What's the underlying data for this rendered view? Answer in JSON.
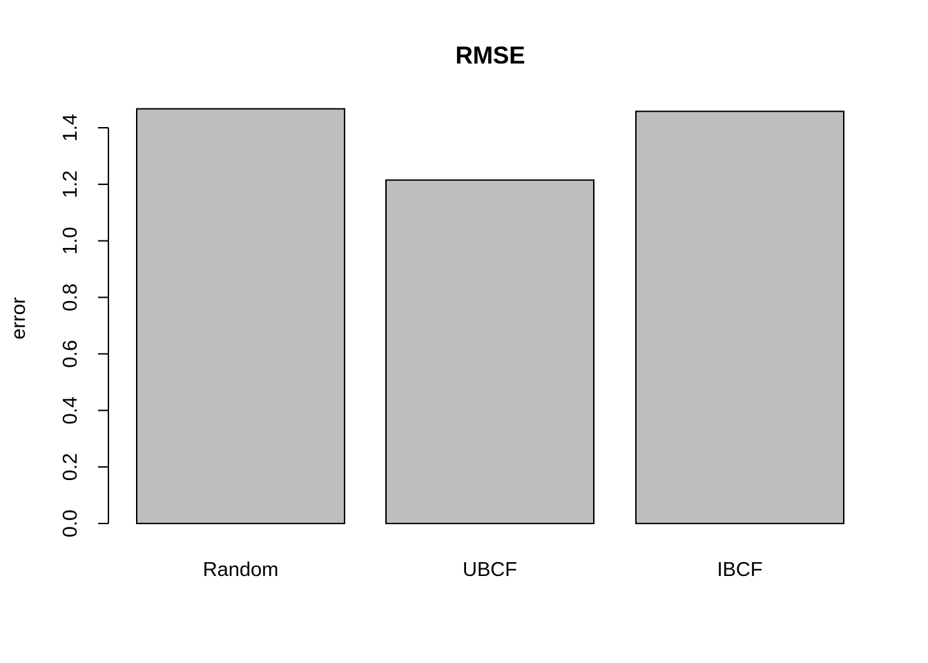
{
  "chart_data": {
    "type": "bar",
    "title": "RMSE",
    "xlabel": "",
    "ylabel": "error",
    "categories": [
      "Random",
      "UBCF",
      "IBCF"
    ],
    "values": [
      1.467,
      1.215,
      1.458
    ],
    "ylim": [
      0,
      1.4
    ],
    "yticks": [
      "0.0",
      "0.2",
      "0.4",
      "0.6",
      "0.8",
      "1.0",
      "1.2",
      "1.4"
    ],
    "grid": false,
    "legend": "none",
    "bar_color": "#bebebe",
    "border_color": "#000000"
  }
}
